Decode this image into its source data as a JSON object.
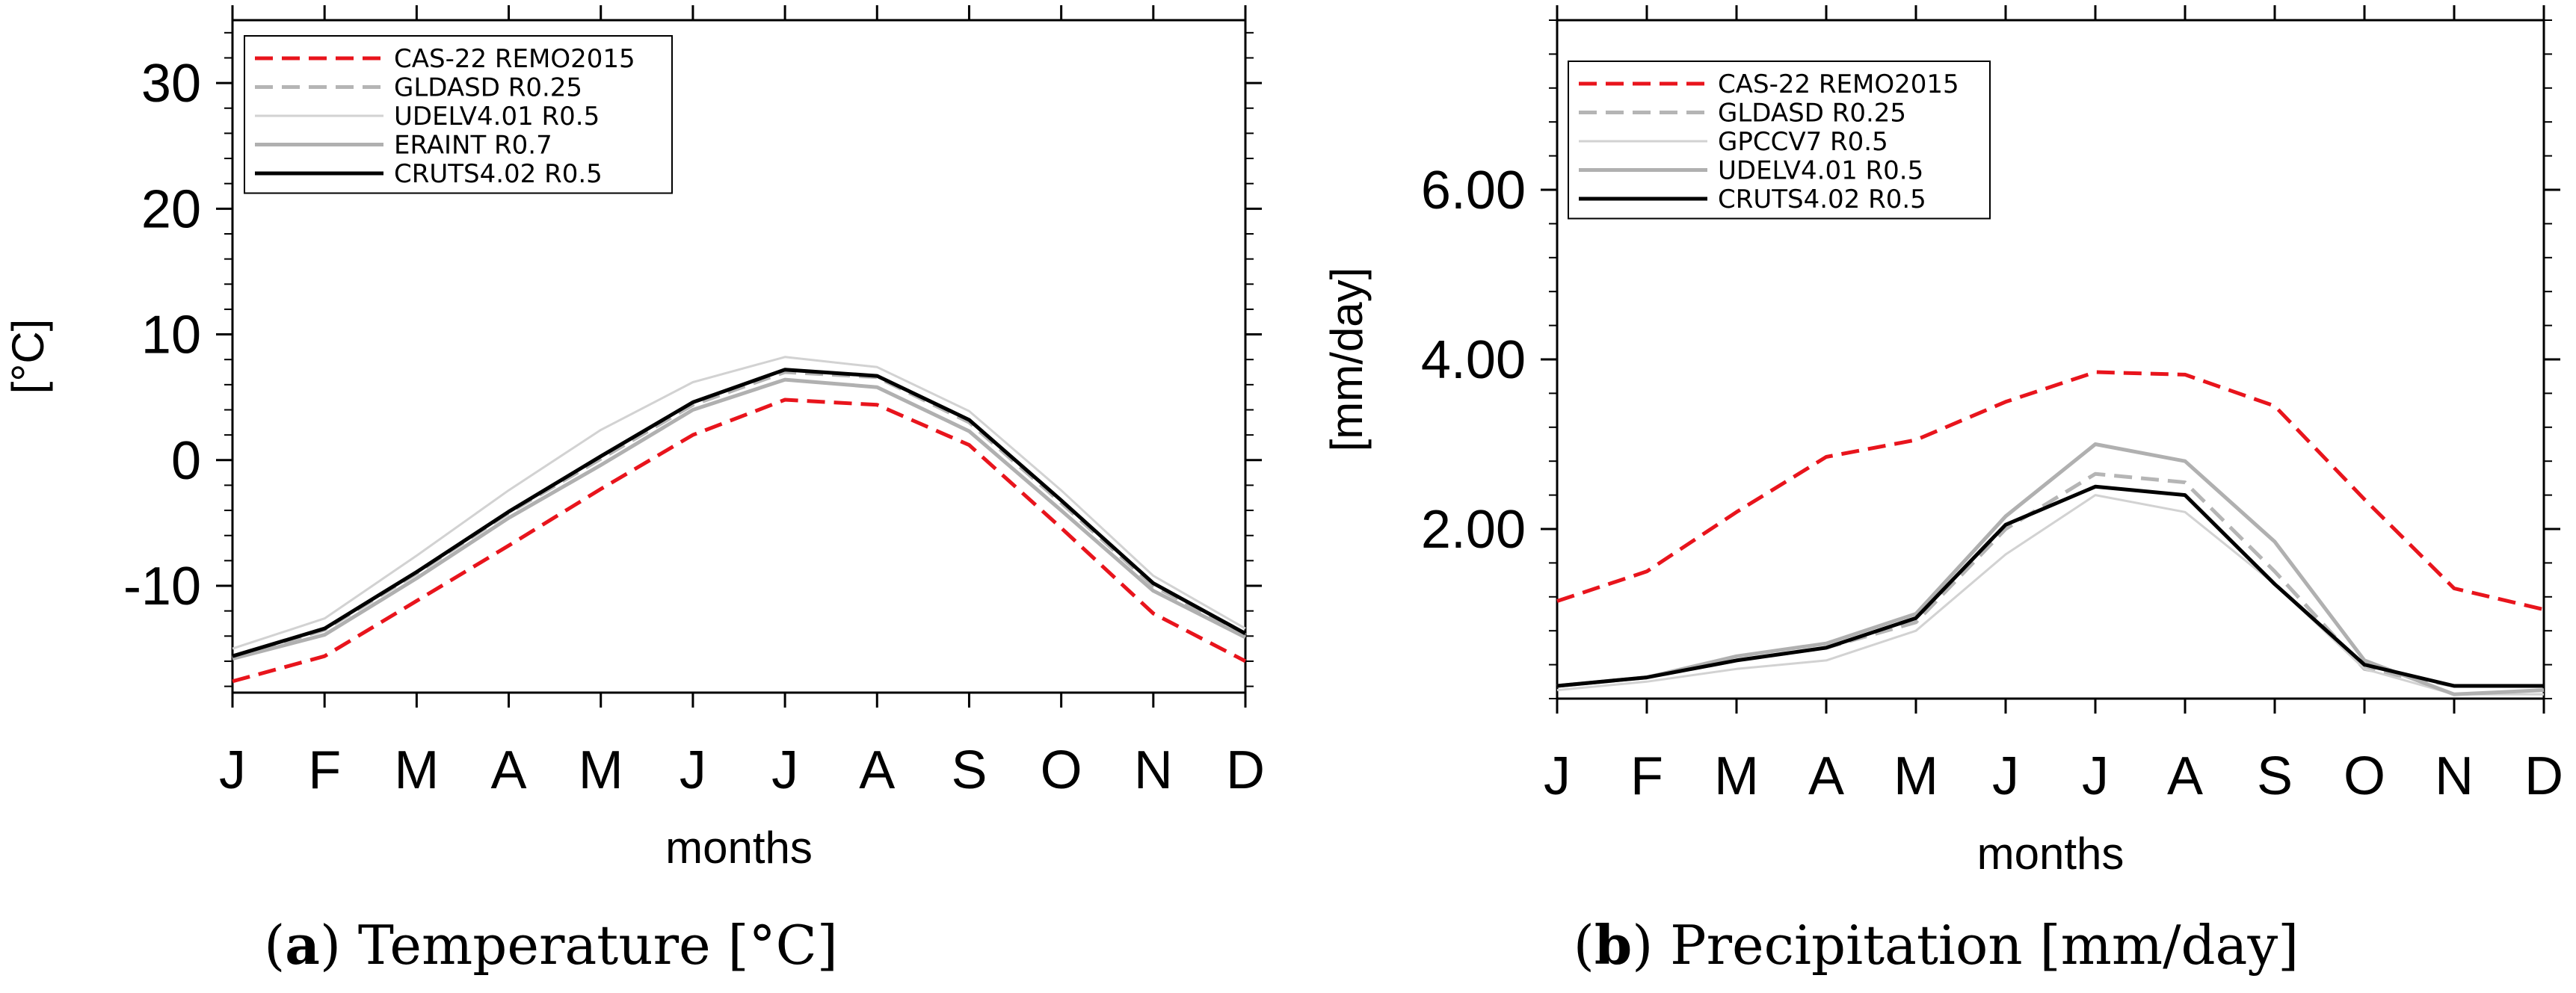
{
  "captions": [
    {
      "letter": "a",
      "text": " Temperature [°C]"
    },
    {
      "letter": "b",
      "text": " Precipitation [mm/day]"
    }
  ],
  "chart_data": [
    {
      "type": "line",
      "title": "Temperature [°C]",
      "xlabel": "months",
      "ylabel": "[°C]",
      "categories": [
        "J",
        "F",
        "M",
        "A",
        "M",
        "J",
        "J",
        "A",
        "S",
        "O",
        "N",
        "D"
      ],
      "ylim": [
        -18.5,
        35
      ],
      "yticks": [
        30,
        20,
        10,
        0,
        -10
      ],
      "ytick_labels": [
        "30",
        "20",
        "10",
        "0",
        "-10"
      ],
      "legend_position": "top-left",
      "series": [
        {
          "name": "CAS-22 REMO2015",
          "color": "#e8141c",
          "dash": "dashed",
          "width": 5,
          "values": [
            -17.6,
            -15.6,
            -11.2,
            -6.8,
            -2.3,
            2.0,
            4.8,
            4.4,
            1.2,
            -5.4,
            -12.2,
            -16.0
          ]
        },
        {
          "name": "GLDASD R0.25",
          "color": "#b5b5b5",
          "dash": "dashed",
          "width": 5,
          "values": [
            -15.7,
            -13.5,
            -9.0,
            -4.2,
            0.1,
            4.4,
            7.0,
            6.6,
            3.0,
            -3.4,
            -10.0,
            -13.9
          ]
        },
        {
          "name": "UDELV4.01 R0.5",
          "color": "#d2d2d2",
          "dash": "solid",
          "width": 3,
          "values": [
            -15.0,
            -12.6,
            -7.6,
            -2.4,
            2.4,
            6.2,
            8.2,
            7.4,
            3.9,
            -2.4,
            -9.2,
            -13.4
          ]
        },
        {
          "name": "ERAINT R0.7",
          "color": "#b0b0b0",
          "dash": "solid",
          "width": 5,
          "values": [
            -15.8,
            -13.9,
            -9.4,
            -4.6,
            -0.4,
            4.0,
            6.4,
            5.8,
            2.3,
            -4.0,
            -10.4,
            -14.1
          ]
        },
        {
          "name": "CRUTS4.02 R0.5",
          "color": "#000000",
          "dash": "solid",
          "width": 5,
          "values": [
            -15.6,
            -13.4,
            -8.9,
            -4.1,
            0.3,
            4.6,
            7.2,
            6.7,
            3.2,
            -3.2,
            -9.8,
            -13.8
          ]
        }
      ]
    },
    {
      "type": "line",
      "title": "Precipitation [mm/day]",
      "xlabel": "months",
      "ylabel": "[mm/day]",
      "categories": [
        "J",
        "F",
        "M",
        "A",
        "M",
        "J",
        "J",
        "A",
        "S",
        "O",
        "N",
        "D"
      ],
      "ylim": [
        0,
        8
      ],
      "yticks": [
        6,
        4,
        2
      ],
      "ytick_labels": [
        "6.00",
        "4.00",
        "2.00"
      ],
      "legend_position": "top-left",
      "series": [
        {
          "name": "CAS-22 REMO2015",
          "color": "#e8141c",
          "dash": "dashed",
          "width": 5,
          "values": [
            1.15,
            1.5,
            2.2,
            2.85,
            3.05,
            3.5,
            3.85,
            3.82,
            3.45,
            2.35,
            1.3,
            1.05
          ]
        },
        {
          "name": "GLDASD R0.25",
          "color": "#b5b5b5",
          "dash": "dashed",
          "width": 5,
          "values": [
            0.15,
            0.25,
            0.45,
            0.6,
            0.9,
            2.0,
            2.65,
            2.55,
            1.5,
            0.35,
            0.15,
            0.15
          ]
        },
        {
          "name": "GPCCV7 R0.5",
          "color": "#d2d2d2",
          "dash": "solid",
          "width": 3,
          "values": [
            0.1,
            0.2,
            0.35,
            0.45,
            0.8,
            1.7,
            2.4,
            2.2,
            1.35,
            0.35,
            0.05,
            0.05
          ]
        },
        {
          "name": "UDELV4.01 R0.5",
          "color": "#b0b0b0",
          "dash": "solid",
          "width": 5,
          "values": [
            0.15,
            0.25,
            0.5,
            0.65,
            1.0,
            2.15,
            3.0,
            2.8,
            1.85,
            0.45,
            0.05,
            0.1
          ]
        },
        {
          "name": "CRUTS4.02 R0.5",
          "color": "#000000",
          "dash": "solid",
          "width": 5,
          "values": [
            0.15,
            0.25,
            0.45,
            0.6,
            0.95,
            2.05,
            2.5,
            2.4,
            1.35,
            0.4,
            0.15,
            0.15
          ]
        }
      ]
    }
  ]
}
